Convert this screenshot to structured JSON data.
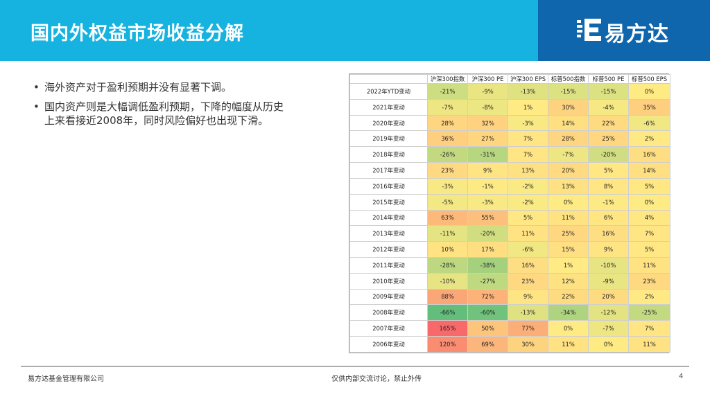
{
  "header": {
    "title": "国内外权益市场收益分解",
    "logo_text": "易方达",
    "colors": {
      "bar": "#16b2e0",
      "logo_bg": "#0f66ad"
    }
  },
  "bullets": [
    {
      "text": "海外资产对于盈利预期并没有显著下调。"
    },
    {
      "text": "国内资产则是大幅调低盈利预期，下降的幅度从历史上来看接近2008年，同时风险偏好也出现下滑。"
    }
  ],
  "table": {
    "columns": [
      "沪深300指数",
      "沪深300 PE",
      "沪深300 EPS",
      "标普500指数",
      "标普500 PE",
      "标普500 EPS"
    ],
    "rows": [
      {
        "label": "2022年YTD变动",
        "values": [
          "-21%",
          "-9%",
          "-13%",
          "-15%",
          "-15%",
          "0%"
        ]
      },
      {
        "label": "2021年变动",
        "values": [
          "-7%",
          "-8%",
          "1%",
          "30%",
          "-4%",
          "35%"
        ]
      },
      {
        "label": "2020年变动",
        "values": [
          "28%",
          "32%",
          "-3%",
          "14%",
          "22%",
          "-6%"
        ]
      },
      {
        "label": "2019年变动",
        "values": [
          "36%",
          "27%",
          "7%",
          "28%",
          "25%",
          "2%"
        ]
      },
      {
        "label": "2018年变动",
        "values": [
          "-26%",
          "-31%",
          "7%",
          "-7%",
          "-20%",
          "16%"
        ]
      },
      {
        "label": "2017年变动",
        "values": [
          "23%",
          "9%",
          "13%",
          "20%",
          "5%",
          "14%"
        ]
      },
      {
        "label": "2016年变动",
        "values": [
          "-3%",
          "-1%",
          "-2%",
          "13%",
          "8%",
          "5%"
        ]
      },
      {
        "label": "2015年变动",
        "values": [
          "-5%",
          "-3%",
          "-2%",
          "0%",
          "-1%",
          "0%"
        ]
      },
      {
        "label": "2014年变动",
        "values": [
          "63%",
          "55%",
          "5%",
          "11%",
          "6%",
          "4%"
        ]
      },
      {
        "label": "2013年变动",
        "values": [
          "-11%",
          "-20%",
          "11%",
          "25%",
          "16%",
          "7%"
        ]
      },
      {
        "label": "2012年变动",
        "values": [
          "10%",
          "17%",
          "-6%",
          "15%",
          "9%",
          "5%"
        ]
      },
      {
        "label": "2011年变动",
        "values": [
          "-28%",
          "-38%",
          "16%",
          "1%",
          "-10%",
          "11%"
        ]
      },
      {
        "label": "2010年变动",
        "values": [
          "-10%",
          "-27%",
          "23%",
          "12%",
          "-9%",
          "23%"
        ]
      },
      {
        "label": "2009年变动",
        "values": [
          "88%",
          "72%",
          "9%",
          "22%",
          "20%",
          "2%"
        ]
      },
      {
        "label": "2008年变动",
        "values": [
          "-66%",
          "-60%",
          "-13%",
          "-34%",
          "-12%",
          "-25%"
        ]
      },
      {
        "label": "2007年变动",
        "values": [
          "165%",
          "50%",
          "77%",
          "0%",
          "-7%",
          "7%"
        ]
      },
      {
        "label": "2006年变动",
        "values": [
          "120%",
          "69%",
          "30%",
          "11%",
          "0%",
          "11%"
        ]
      }
    ]
  },
  "footer": {
    "company": "易方达基金管理有限公司",
    "notice": "仅供内部交流讨论，禁止外传",
    "page": "4"
  }
}
